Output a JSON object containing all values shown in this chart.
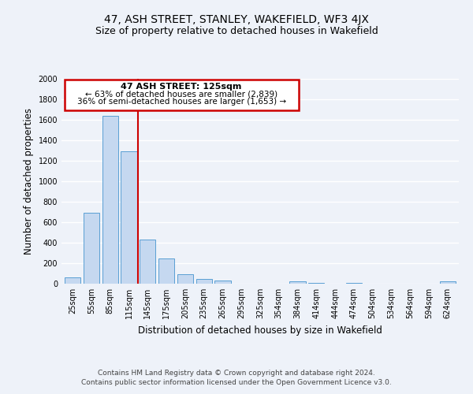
{
  "title": "47, ASH STREET, STANLEY, WAKEFIELD, WF3 4JX",
  "subtitle": "Size of property relative to detached houses in Wakefield",
  "xlabel": "Distribution of detached houses by size in Wakefield",
  "ylabel": "Number of detached properties",
  "categories": [
    "25sqm",
    "55sqm",
    "85sqm",
    "115sqm",
    "145sqm",
    "175sqm",
    "205sqm",
    "235sqm",
    "265sqm",
    "295sqm",
    "325sqm",
    "354sqm",
    "384sqm",
    "414sqm",
    "444sqm",
    "474sqm",
    "504sqm",
    "534sqm",
    "564sqm",
    "594sqm",
    "624sqm"
  ],
  "values": [
    65,
    690,
    1640,
    1290,
    430,
    250,
    90,
    50,
    30,
    0,
    0,
    0,
    20,
    10,
    0,
    10,
    0,
    0,
    0,
    0,
    20
  ],
  "bar_color": "#c5d8f0",
  "bar_edge_color": "#5a9fd4",
  "vline_color": "#cc0000",
  "vline_x": 3.5,
  "annotation_title": "47 ASH STREET: 125sqm",
  "annotation_line1": "← 63% of detached houses are smaller (2,839)",
  "annotation_line2": "36% of semi-detached houses are larger (1,653) →",
  "annotation_box_color": "#cc0000",
  "ylim": [
    0,
    2000
  ],
  "yticks": [
    0,
    200,
    400,
    600,
    800,
    1000,
    1200,
    1400,
    1600,
    1800,
    2000
  ],
  "footer_line1": "Contains HM Land Registry data © Crown copyright and database right 2024.",
  "footer_line2": "Contains public sector information licensed under the Open Government Licence v3.0.",
  "background_color": "#eef2f9",
  "grid_color": "#ffffff",
  "title_fontsize": 10,
  "subtitle_fontsize": 9,
  "axis_label_fontsize": 8.5,
  "tick_fontsize": 7,
  "footer_fontsize": 6.5,
  "ann_title_fontsize": 8,
  "ann_text_fontsize": 7.5
}
